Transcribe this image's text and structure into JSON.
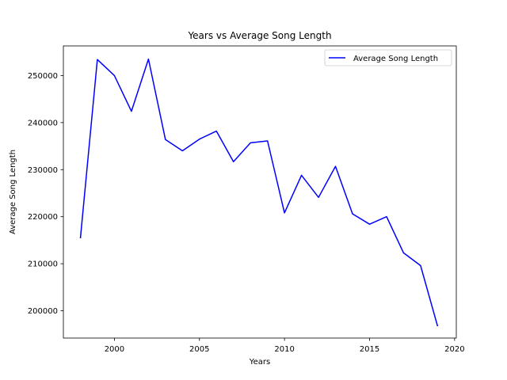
{
  "chart_data": {
    "type": "line",
    "title": "Years vs Average Song Length",
    "xlabel": "Years",
    "ylabel": "Average Song Length",
    "xlim": [
      1997.0,
      2020.1
    ],
    "ylim": [
      194200,
      256300
    ],
    "xticks": [
      2000,
      2005,
      2010,
      2015,
      2020
    ],
    "yticks": [
      200000,
      210000,
      220000,
      230000,
      240000,
      250000
    ],
    "grid": false,
    "legend_position": "top-right",
    "series": [
      {
        "name": "Average Song Length",
        "color": "#0000ff",
        "x": [
          1998,
          1999,
          2000,
          2001,
          2002,
          2003,
          2004,
          2005,
          2006,
          2007,
          2008,
          2009,
          2010,
          2011,
          2012,
          2013,
          2014,
          2015,
          2016,
          2017,
          2018,
          2019
        ],
        "y": [
          215400,
          253400,
          250000,
          242400,
          253500,
          236400,
          234000,
          236500,
          238200,
          231700,
          235700,
          236100,
          220800,
          228800,
          224100,
          230700,
          220600,
          218400,
          220000,
          212300,
          209600,
          196700
        ]
      }
    ]
  }
}
